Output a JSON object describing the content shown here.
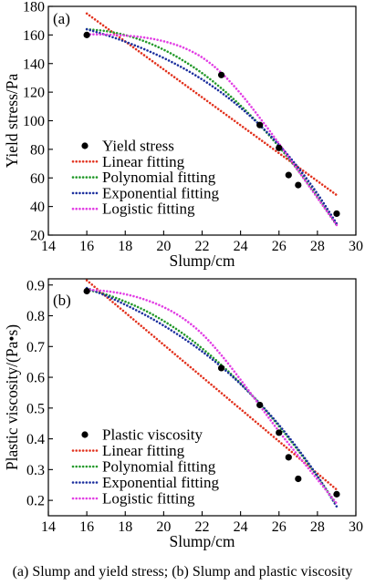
{
  "caption": "(a) Slump and yield stress; (b) Slump and plastic viscosity",
  "chart_data": [
    {
      "type": "scatter",
      "panel_label": "(a)",
      "xlabel": "Slump/cm",
      "ylabel": "Yield stress/Pa",
      "xlim": [
        14,
        30
      ],
      "ylim": [
        20,
        180
      ],
      "xticks": [
        "14",
        "16",
        "18",
        "20",
        "22",
        "24",
        "26",
        "28",
        "30"
      ],
      "yticks": [
        "20",
        "40",
        "60",
        "80",
        "100",
        "120",
        "140",
        "160",
        "180"
      ],
      "grid": false,
      "legend": "bottom-left",
      "series": [
        {
          "name": "Yield stress",
          "type": "scatter",
          "color": "#000000",
          "x": [
            16,
            23,
            25,
            26,
            26.5,
            27,
            29
          ],
          "y": [
            160,
            132,
            97,
            81,
            62,
            55,
            35
          ]
        },
        {
          "name": "Linear fitting",
          "type": "line",
          "color": "#e2331f",
          "x": [
            16,
            29
          ],
          "y": [
            175,
            48
          ]
        },
        {
          "name": "Polynomial fitting",
          "type": "line",
          "color": "#23992a",
          "x": [
            16,
            17,
            18,
            19,
            20,
            21,
            22,
            23,
            24,
            25,
            26,
            27,
            28,
            29
          ],
          "y": [
            164.0,
            162.7,
            159.9,
            155.6,
            149.7,
            142.2,
            133.3,
            122.7,
            110.6,
            97.0,
            81.8,
            65.1,
            46.8,
            27.0
          ]
        },
        {
          "name": "Exponential fitting",
          "type": "line",
          "color": "#1c2f9e",
          "x": [
            16,
            17,
            18,
            19,
            20,
            21,
            22,
            23,
            24,
            25,
            26,
            27,
            28,
            29
          ],
          "y": [
            164.0,
            160.0,
            155.3,
            150.0,
            143.9,
            136.9,
            128.9,
            119.7,
            109.1,
            97.0,
            83.1,
            67.2,
            48.9,
            28.0
          ]
        },
        {
          "name": "Logistic fitting",
          "type": "line",
          "color": "#e23ee4",
          "x": [
            16,
            17,
            18,
            19,
            20,
            21,
            22,
            23,
            24,
            25,
            26,
            27,
            28,
            29
          ],
          "y": [
            160.5,
            160.3,
            159.6,
            158.2,
            155.6,
            151.3,
            144.3,
            133.5,
            119.0,
            102.0,
            84.0,
            65.0,
            46.0,
            27.0
          ]
        }
      ]
    },
    {
      "type": "scatter",
      "panel_label": "(b)",
      "xlabel": "Slump/cm",
      "ylabel": "Plastic viscosity/(Pa•s)",
      "xlim": [
        14,
        30
      ],
      "ylim": [
        0.15,
        0.92
      ],
      "xticks": [
        "14",
        "16",
        "18",
        "20",
        "22",
        "24",
        "26",
        "28",
        "30"
      ],
      "yticks": [
        "0.2",
        "0.3",
        "0.4",
        "0.5",
        "0.6",
        "0.7",
        "0.8",
        "0.9"
      ],
      "grid": false,
      "legend": "bottom-left",
      "series": [
        {
          "name": "Plastic viscosity",
          "type": "scatter",
          "color": "#000000",
          "x": [
            16,
            23,
            25,
            26,
            26.5,
            27,
            29
          ],
          "y": [
            0.88,
            0.63,
            0.51,
            0.42,
            0.34,
            0.27,
            0.22
          ]
        },
        {
          "name": "Linear fitting",
          "type": "line",
          "color": "#e2331f",
          "x": [
            16,
            29
          ],
          "y": [
            0.915,
            0.235
          ]
        },
        {
          "name": "Polynomial fitting",
          "type": "line",
          "color": "#23992a",
          "x": [
            16,
            17,
            18,
            19,
            20,
            21,
            22,
            23,
            24,
            25,
            26,
            27,
            28,
            29
          ],
          "y": [
            0.885,
            0.869,
            0.846,
            0.818,
            0.783,
            0.742,
            0.694,
            0.64,
            0.58,
            0.514,
            0.441,
            0.362,
            0.277,
            0.185
          ]
        },
        {
          "name": "Exponential fitting",
          "type": "line",
          "color": "#1c2f9e",
          "x": [
            16,
            17,
            18,
            19,
            20,
            21,
            22,
            23,
            24,
            25,
            26,
            27,
            28,
            29
          ],
          "y": [
            0.89,
            0.865,
            0.836,
            0.804,
            0.768,
            0.728,
            0.684,
            0.634,
            0.578,
            0.515,
            0.445,
            0.366,
            0.279,
            0.18
          ]
        },
        {
          "name": "Logistic fitting",
          "type": "line",
          "color": "#e23ee4",
          "x": [
            16,
            17,
            18,
            19,
            20,
            21,
            22,
            23,
            24,
            25,
            26,
            27,
            28,
            29
          ],
          "y": [
            0.885,
            0.88,
            0.87,
            0.853,
            0.828,
            0.792,
            0.741,
            0.672,
            0.592,
            0.508,
            0.424,
            0.345,
            0.268,
            0.19
          ]
        }
      ]
    }
  ]
}
